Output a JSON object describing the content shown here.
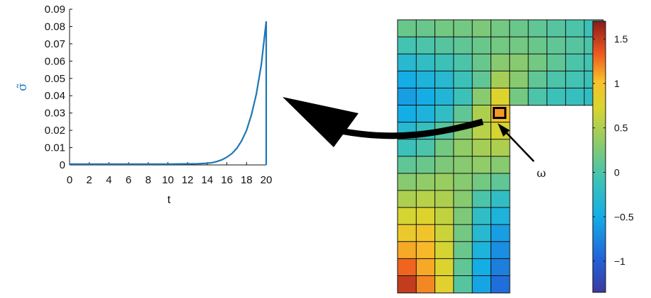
{
  "chart_data": [
    {
      "type": "line",
      "xlabel": "t",
      "ylabel": "σ̃",
      "xlim": [
        0,
        20
      ],
      "ylim": [
        0,
        0.09
      ],
      "xticks": [
        "0",
        "2",
        "4",
        "6",
        "8",
        "10",
        "12",
        "14",
        "16",
        "18",
        "20"
      ],
      "yticks": [
        "0",
        "0.01",
        "0.02",
        "0.03",
        "0.04",
        "0.05",
        "0.06",
        "0.07",
        "0.08",
        "0.09"
      ],
      "grid": false,
      "color": "#1f77b4",
      "series": [
        {
          "x": [
            0,
            2,
            4,
            6,
            8,
            10,
            12,
            13,
            14,
            14.5,
            15,
            15.5,
            16,
            16.5,
            17,
            17.5,
            18,
            18.5,
            19,
            19.5,
            20,
            20
          ],
          "values": [
            0.0005,
            0.0005,
            0.0005,
            0.0005,
            0.0005,
            0.0005,
            0.0006,
            0.0007,
            0.001,
            0.0013,
            0.002,
            0.003,
            0.0045,
            0.0065,
            0.0095,
            0.014,
            0.02,
            0.029,
            0.041,
            0.058,
            0.083,
            0
          ]
        }
      ]
    },
    {
      "type": "heatmap",
      "colorbar": {
        "range": [
          -1.35,
          1.7
        ],
        "ticks": [
          "1.5",
          "1",
          "0.5",
          "0",
          "−0.5",
          "−1"
        ],
        "tick_values": [
          1.5,
          1,
          0.5,
          0,
          -0.5,
          -1
        ]
      },
      "annotation": "ω",
      "rows": [
        [
          0.15,
          0.15,
          0.2,
          0.2,
          0.25,
          0.2,
          0.15,
          0.1,
          0.05,
          0.0,
          -0.1
        ],
        [
          -0.05,
          0.0,
          0.05,
          0.1,
          0.15,
          0.2,
          0.2,
          0.15,
          0.1,
          0.05,
          0.0
        ],
        [
          -0.3,
          -0.2,
          -0.1,
          0.0,
          0.15,
          0.3,
          0.3,
          0.2,
          0.1,
          0.0,
          -0.05
        ],
        [
          -0.5,
          -0.4,
          -0.3,
          -0.1,
          0.1,
          0.45,
          0.3,
          0.1,
          0.0,
          -0.05,
          -0.1
        ],
        [
          -0.6,
          -0.5,
          -0.35,
          -0.1,
          0.3,
          0.75,
          0.2,
          0.0,
          -0.1,
          -0.15,
          -0.2
        ],
        [
          -0.5,
          -0.4,
          -0.2,
          0.1,
          0.5,
          1.0,
          null,
          null,
          null,
          null,
          null
        ],
        [
          -0.3,
          -0.15,
          0.05,
          0.3,
          0.55,
          0.7,
          null,
          null,
          null,
          null,
          null
        ],
        [
          -0.1,
          0.0,
          0.2,
          0.35,
          0.45,
          0.5,
          null,
          null,
          null,
          null,
          null
        ],
        [
          0.1,
          0.15,
          0.25,
          0.3,
          0.35,
          0.3,
          null,
          null,
          null,
          null,
          null
        ],
        [
          0.3,
          0.35,
          0.4,
          0.3,
          0.2,
          0.1,
          null,
          null,
          null,
          null,
          null
        ],
        [
          0.5,
          0.55,
          0.5,
          0.3,
          0.0,
          -0.2,
          null,
          null,
          null,
          null,
          null
        ],
        [
          0.7,
          0.75,
          0.6,
          0.25,
          -0.2,
          -0.4,
          null,
          null,
          null,
          null,
          null
        ],
        [
          0.9,
          0.95,
          0.65,
          0.2,
          -0.3,
          -0.6,
          null,
          null,
          null,
          null,
          null
        ],
        [
          1.1,
          1.05,
          0.7,
          0.15,
          -0.4,
          -0.7,
          null,
          null,
          null,
          null,
          null
        ],
        [
          1.3,
          1.1,
          0.75,
          0.1,
          -0.5,
          -0.8,
          null,
          null,
          null,
          null,
          null
        ],
        [
          1.5,
          1.2,
          0.8,
          0.05,
          -0.55,
          -0.9,
          null,
          null,
          null,
          null,
          null
        ]
      ],
      "highlight_cell": [
        5,
        5
      ]
    }
  ]
}
